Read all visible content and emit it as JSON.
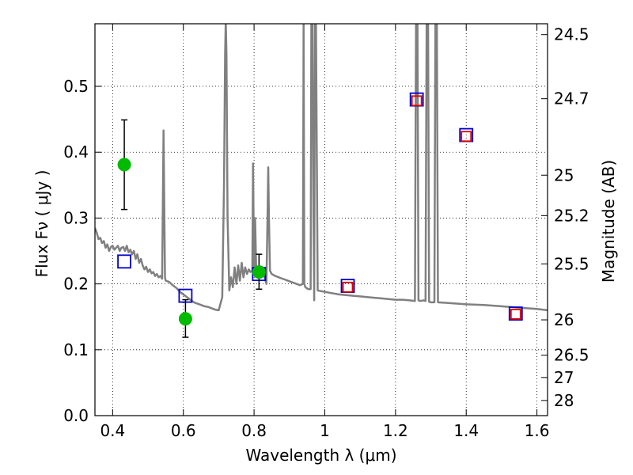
{
  "chart_data": {
    "type": "scatter",
    "xlabel": "Wavelength  λ (μm)",
    "ylabel": "Flux  Fν  ( μJy )",
    "ylabel_right": "Magnitude (AB)",
    "xlim": [
      0.35,
      1.63
    ],
    "ylim": [
      0.0,
      0.595
    ],
    "grid": true,
    "x_ticks": [
      0.4,
      0.6,
      0.8,
      1.0,
      1.2,
      1.4,
      1.6
    ],
    "x_tick_labels": [
      "0.4",
      "0.6",
      "0.8",
      "1",
      "1.2",
      "1.4",
      "1.6"
    ],
    "y_ticks": [
      0.0,
      0.1,
      0.2,
      0.3,
      0.4,
      0.5
    ],
    "y_tick_labels": [
      "0.0",
      "0.1",
      "0.2",
      "0.3",
      "0.4",
      "0.5"
    ],
    "mag_ticks": [
      {
        "label": "24.5",
        "flux": 0.5785
      },
      {
        "label": "24.7",
        "flux": 0.4812
      },
      {
        "label": "25",
        "flux": 0.3651
      },
      {
        "label": "25.2",
        "flux": 0.3037
      },
      {
        "label": "25.5",
        "flux": 0.2304
      },
      {
        "label": "26",
        "flux": 0.1454
      },
      {
        "label": "26.5",
        "flux": 0.0917
      },
      {
        "label": "27",
        "flux": 0.0579
      },
      {
        "label": "28",
        "flux": 0.023
      }
    ],
    "series": [
      {
        "name": "observed",
        "style": "green-circle-errorbar",
        "color": "#00bb00",
        "points": [
          {
            "x": 0.433,
            "y": 0.381,
            "yerr_low": 0.313,
            "yerr_high": 0.449
          },
          {
            "x": 0.606,
            "y": 0.147,
            "yerr_low": 0.119,
            "yerr_high": 0.176
          },
          {
            "x": 0.814,
            "y": 0.218,
            "yerr_low": 0.192,
            "yerr_high": 0.245
          }
        ]
      },
      {
        "name": "model-blue-squares",
        "style": "blue-open-square",
        "color": "#0000cc",
        "points": [
          {
            "x": 0.433,
            "y": 0.234
          },
          {
            "x": 0.606,
            "y": 0.182
          },
          {
            "x": 0.814,
            "y": 0.215
          },
          {
            "x": 1.065,
            "y": 0.197
          },
          {
            "x": 1.26,
            "y": 0.48
          },
          {
            "x": 1.4,
            "y": 0.426
          },
          {
            "x": 1.54,
            "y": 0.155
          }
        ]
      },
      {
        "name": "model-red-squares",
        "style": "red-open-square",
        "color": "#dd0000",
        "points": [
          {
            "x": 1.065,
            "y": 0.195
          },
          {
            "x": 1.26,
            "y": 0.478
          },
          {
            "x": 1.4,
            "y": 0.424
          },
          {
            "x": 1.54,
            "y": 0.154
          }
        ]
      },
      {
        "name": "sed-template",
        "style": "gray-line",
        "color": "#808080",
        "x": [
          0.35,
          0.355,
          0.36,
          0.365,
          0.37,
          0.375,
          0.38,
          0.385,
          0.39,
          0.395,
          0.4,
          0.405,
          0.41,
          0.415,
          0.42,
          0.425,
          0.43,
          0.435,
          0.44,
          0.445,
          0.45,
          0.455,
          0.46,
          0.465,
          0.47,
          0.475,
          0.48,
          0.485,
          0.49,
          0.495,
          0.5,
          0.505,
          0.51,
          0.515,
          0.52,
          0.525,
          0.53,
          0.535,
          0.54,
          0.542,
          0.544,
          0.546,
          0.548,
          0.55,
          0.555,
          0.56,
          0.57,
          0.58,
          0.59,
          0.6,
          0.61,
          0.62,
          0.63,
          0.64,
          0.65,
          0.66,
          0.67,
          0.68,
          0.69,
          0.7,
          0.71,
          0.715,
          0.718,
          0.72,
          0.722,
          0.725,
          0.73,
          0.735,
          0.74,
          0.745,
          0.75,
          0.755,
          0.76,
          0.765,
          0.77,
          0.775,
          0.78,
          0.785,
          0.79,
          0.795,
          0.797,
          0.8,
          0.803,
          0.806,
          0.81,
          0.815,
          0.82,
          0.825,
          0.83,
          0.835,
          0.838,
          0.84,
          0.842,
          0.845,
          0.85,
          0.86,
          0.87,
          0.88,
          0.89,
          0.9,
          0.91,
          0.92,
          0.93,
          0.938,
          0.94,
          0.942,
          0.945,
          0.95,
          0.955,
          0.96,
          0.962,
          0.965,
          0.968,
          0.97,
          0.972,
          0.975,
          0.98,
          0.99,
          1.0,
          1.02,
          1.04,
          1.06,
          1.08,
          1.1,
          1.12,
          1.14,
          1.16,
          1.18,
          1.2,
          1.22,
          1.24,
          1.255,
          1.258,
          1.26,
          1.262,
          1.265,
          1.27,
          1.28,
          1.285,
          1.288,
          1.29,
          1.292,
          1.295,
          1.3,
          1.31,
          1.313,
          1.315,
          1.317,
          1.32,
          1.35,
          1.4,
          1.45,
          1.5,
          1.55,
          1.6,
          1.63
        ],
        "y": [
          0.285,
          0.278,
          0.268,
          0.27,
          0.262,
          0.265,
          0.255,
          0.26,
          0.25,
          0.256,
          0.258,
          0.252,
          0.255,
          0.258,
          0.25,
          0.255,
          0.256,
          0.25,
          0.258,
          0.248,
          0.252,
          0.245,
          0.25,
          0.238,
          0.245,
          0.232,
          0.238,
          0.228,
          0.222,
          0.226,
          0.218,
          0.222,
          0.216,
          0.218,
          0.212,
          0.215,
          0.21,
          0.212,
          0.208,
          0.32,
          0.433,
          0.32,
          0.21,
          0.205,
          0.204,
          0.203,
          0.198,
          0.194,
          0.188,
          0.184,
          0.18,
          0.176,
          0.172,
          0.17,
          0.168,
          0.166,
          0.165,
          0.163,
          0.161,
          0.16,
          0.18,
          0.35,
          0.55,
          0.6,
          0.55,
          0.3,
          0.19,
          0.21,
          0.195,
          0.225,
          0.2,
          0.228,
          0.205,
          0.232,
          0.21,
          0.225,
          0.215,
          0.222,
          0.218,
          0.22,
          0.383,
          0.22,
          0.3,
          0.22,
          0.215,
          0.21,
          0.22,
          0.215,
          0.21,
          0.2,
          0.3,
          0.377,
          0.3,
          0.22,
          0.215,
          0.212,
          0.21,
          0.208,
          0.206,
          0.204,
          0.202,
          0.2,
          0.198,
          0.2,
          0.6,
          0.2,
          0.195,
          0.193,
          0.192,
          0.192,
          0.6,
          0.6,
          0.3,
          0.175,
          0.6,
          0.6,
          0.19,
          0.189,
          0.188,
          0.186,
          0.184,
          0.183,
          0.182,
          0.181,
          0.18,
          0.179,
          0.178,
          0.177,
          0.176,
          0.176,
          0.175,
          0.174,
          0.6,
          0.6,
          0.6,
          0.175,
          0.174,
          0.175,
          0.174,
          0.6,
          0.6,
          0.6,
          0.173,
          0.172,
          0.172,
          0.6,
          0.6,
          0.6,
          0.172,
          0.171,
          0.169,
          0.168,
          0.166,
          0.164,
          0.162,
          0.16
        ]
      }
    ]
  }
}
